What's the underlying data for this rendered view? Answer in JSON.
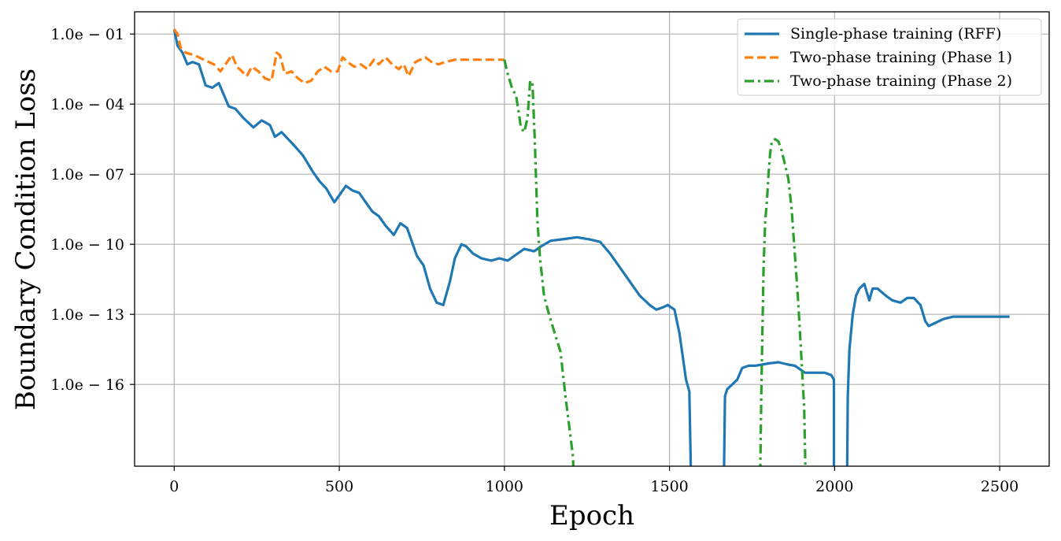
{
  "chart_data": {
    "type": "line",
    "title": "",
    "xlabel": "Epoch",
    "ylabel": "Boundary Condition Loss",
    "xlim": [
      -120,
      2650
    ],
    "ylog10lim": [
      -19.5,
      -0.05
    ],
    "xticks": [
      0,
      500,
      1000,
      1500,
      2000,
      2500
    ],
    "xtick_labels": [
      "0",
      "500",
      "1000",
      "1500",
      "2000",
      "2500"
    ],
    "yticks_log10": [
      -1,
      -4,
      -7,
      -10,
      -13,
      -16
    ],
    "ytick_labels": [
      "1.0e − 01",
      "1.0e − 04",
      "1.0e − 07",
      "1.0e − 10",
      "1.0e − 13",
      "1.0e − 16"
    ],
    "y_scale": "log",
    "grid": true,
    "legend_position": "top-right",
    "series": [
      {
        "name": "Single-phase training (RFF)",
        "color": "#1f77b4",
        "style": "solid",
        "segments": [
          {
            "x": [
              0,
              10,
              25,
              40,
              55,
              75,
              95,
              115,
              135,
              150,
              165,
              185,
              210,
              240,
              265,
              290,
              305,
              325,
              345,
              365,
              390,
              420,
              440,
              460,
              485,
              500,
              520,
              540,
              560,
              580,
              600,
              620,
              640,
              665,
              685,
              705,
              720,
              735,
              755,
              775,
              795,
              815,
              835,
              850,
              870,
              885,
              905,
              930,
              960,
              985,
              1010,
              1030,
              1060,
              1090,
              1110,
              1140,
              1180,
              1220,
              1260,
              1290,
              1320,
              1350,
              1380,
              1410,
              1440,
              1460,
              1480,
              1495,
              1505,
              1515,
              1530,
              1550,
              1560,
              1565
            ],
            "y": [
              -0.8,
              -1.5,
              -1.8,
              -2.3,
              -2.2,
              -2.3,
              -3.2,
              -3.3,
              -3.1,
              -3.6,
              -4.1,
              -4.2,
              -4.6,
              -5.0,
              -4.7,
              -4.9,
              -5.4,
              -5.2,
              -5.5,
              -5.8,
              -6.2,
              -6.9,
              -7.3,
              -7.6,
              -8.2,
              -7.9,
              -7.5,
              -7.7,
              -7.8,
              -8.2,
              -8.6,
              -8.8,
              -9.2,
              -9.6,
              -9.1,
              -9.3,
              -9.9,
              -10.5,
              -10.9,
              -11.9,
              -12.5,
              -12.6,
              -11.6,
              -10.6,
              -10.0,
              -10.1,
              -10.4,
              -10.6,
              -10.7,
              -10.6,
              -10.7,
              -10.5,
              -10.2,
              -10.3,
              -10.1,
              -9.85,
              -9.78,
              -9.7,
              -9.8,
              -9.9,
              -10.4,
              -11.0,
              -11.6,
              -12.2,
              -12.6,
              -12.8,
              -12.7,
              -12.6,
              -12.7,
              -12.8,
              -13.8,
              -15.8,
              -16.3,
              -19.8
            ]
          },
          {
            "x": [
              1665,
              1668,
              1675,
              1690,
              1705,
              1720,
              1740,
              1760,
              1780,
              1800,
              1830,
              1860,
              1880,
              1910,
              1940,
              1970,
              1990,
              1998,
              1998
            ],
            "y": [
              -19.8,
              -16.5,
              -16.2,
              -16.0,
              -15.8,
              -15.3,
              -15.2,
              -15.2,
              -15.15,
              -15.1,
              -15.05,
              -15.15,
              -15.2,
              -15.5,
              -15.5,
              -15.5,
              -15.6,
              -15.8,
              -19.8
            ]
          },
          {
            "x": [
              2038,
              2040,
              2045,
              2055,
              2065,
              2075,
              2090,
              2105,
              2115,
              2130,
              2155,
              2175,
              2200,
              2220,
              2240,
              2260,
              2275,
              2285,
              2300,
              2330,
              2360,
              2400,
              2450,
              2500,
              2530
            ],
            "y": [
              -19.8,
              -16.5,
              -14.5,
              -13.0,
              -12.2,
              -11.9,
              -11.7,
              -12.4,
              -11.9,
              -11.9,
              -12.2,
              -12.4,
              -12.5,
              -12.3,
              -12.3,
              -12.6,
              -13.3,
              -13.5,
              -13.4,
              -13.2,
              -13.1,
              -13.1,
              -13.1,
              -13.1,
              -13.1
            ]
          }
        ]
      },
      {
        "name": "Two-phase training (Phase 1)",
        "color": "#ff7f0e",
        "style": "dashed",
        "segments": [
          {
            "x": [
              0,
              10,
              20,
              35,
              60,
              90,
              120,
              140,
              160,
              175,
              190,
              205,
              220,
              235,
              255,
              275,
              295,
              310,
              320,
              335,
              355,
              375,
              395,
              415,
              435,
              455,
              475,
              495,
              510,
              525,
              545,
              565,
              585,
              605,
              620,
              640,
              660,
              680,
              695,
              710,
              730,
              760,
              780,
              800,
              820,
              850,
              900,
              1000
            ],
            "y": [
              -0.8,
              -1.0,
              -1.6,
              -1.8,
              -1.9,
              -2.1,
              -2.3,
              -2.6,
              -2.2,
              -1.9,
              -2.4,
              -2.6,
              -2.8,
              -2.4,
              -2.6,
              -2.9,
              -3.0,
              -1.8,
              -1.9,
              -2.7,
              -2.6,
              -2.9,
              -3.1,
              -3.0,
              -2.6,
              -2.4,
              -2.6,
              -2.6,
              -2.0,
              -2.2,
              -2.4,
              -2.3,
              -2.5,
              -2.1,
              -2.3,
              -2.0,
              -2.3,
              -2.5,
              -2.3,
              -2.8,
              -2.2,
              -2.0,
              -2.2,
              -2.3,
              -2.2,
              -2.1,
              -2.1,
              -2.1
            ]
          }
        ]
      },
      {
        "name": "Two-phase training (Phase 2)",
        "color": "#2ca02c",
        "style": "dashdot",
        "segments": [
          {
            "x": [
              1000,
              1010,
              1025,
              1035,
              1045,
              1050,
              1060,
              1070,
              1078,
              1085,
              1092,
              1100,
              1108,
              1120,
              1135,
              1150,
              1170,
              1185,
              1200,
              1207,
              1210
            ],
            "y": [
              -2.1,
              -2.7,
              -3.4,
              -3.6,
              -4.5,
              -5.0,
              -5.2,
              -4.6,
              -3.0,
              -3.1,
              -5.5,
              -9.0,
              -10.6,
              -12.2,
              -13.0,
              -13.7,
              -14.6,
              -16.5,
              -18.2,
              -19.0,
              -19.8
            ]
          },
          {
            "x": [
              1775,
              1778,
              1785,
              1790,
              1795,
              1800,
              1805,
              1810,
              1820,
              1830,
              1840,
              1850,
              1860,
              1870,
              1880,
              1890,
              1900,
              1908,
              1912
            ],
            "y": [
              -19.8,
              -16.5,
              -11.0,
              -9.0,
              -8.2,
              -7.0,
              -6.1,
              -5.6,
              -5.5,
              -5.6,
              -6.0,
              -6.6,
              -7.2,
              -8.5,
              -10.5,
              -12.5,
              -15.0,
              -17.0,
              -19.8
            ]
          }
        ]
      }
    ]
  }
}
